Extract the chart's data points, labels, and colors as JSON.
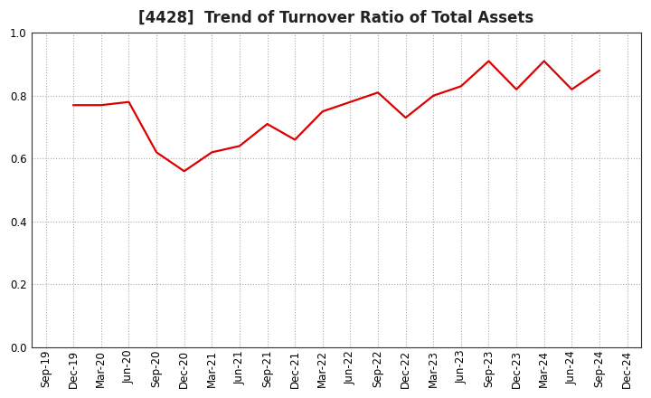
{
  "title": "[4428]  Trend of Turnover Ratio of Total Assets",
  "x_labels": [
    "Sep-19",
    "Dec-19",
    "Mar-20",
    "Jun-20",
    "Sep-20",
    "Dec-20",
    "Mar-21",
    "Jun-21",
    "Sep-21",
    "Dec-21",
    "Mar-22",
    "Jun-22",
    "Sep-22",
    "Dec-22",
    "Mar-23",
    "Jun-23",
    "Sep-23",
    "Dec-23",
    "Mar-24",
    "Jun-24",
    "Sep-24",
    "Dec-24"
  ],
  "y_values": [
    null,
    0.77,
    0.77,
    0.78,
    0.62,
    0.56,
    0.62,
    0.64,
    0.71,
    0.66,
    0.75,
    0.78,
    0.81,
    0.73,
    0.8,
    0.83,
    0.91,
    0.82,
    0.91,
    0.82,
    0.88,
    null
  ],
  "line_color": "#dd0000",
  "line_width": 1.6,
  "ylim": [
    0.0,
    1.0
  ],
  "yticks": [
    0.0,
    0.2,
    0.4,
    0.6,
    0.8,
    1.0
  ],
  "grid_color": "#aaaaaa",
  "background_color": "#ffffff",
  "title_fontsize": 12,
  "tick_fontsize": 8.5,
  "spine_color": "#333333"
}
